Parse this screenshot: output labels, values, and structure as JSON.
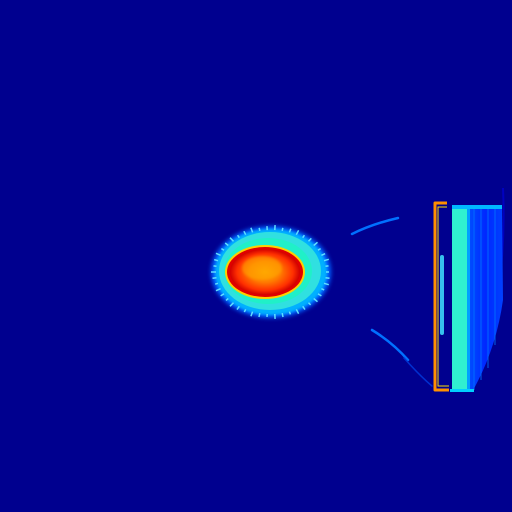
{
  "image": {
    "colormap": "jet",
    "background_color": "#00008f",
    "colors": {
      "deep_blue": "#00008f",
      "blue": "#0020ff",
      "mid_blue": "#0050ff",
      "light_blue": "#00a0ff",
      "cyan": "#00ffff",
      "aqua": "#20f0d0",
      "green_yellow": "#a0ff60",
      "yellow": "#ffe000",
      "orange": "#ff8000",
      "red": "#ff2000",
      "dark_red": "#c00000"
    }
  }
}
